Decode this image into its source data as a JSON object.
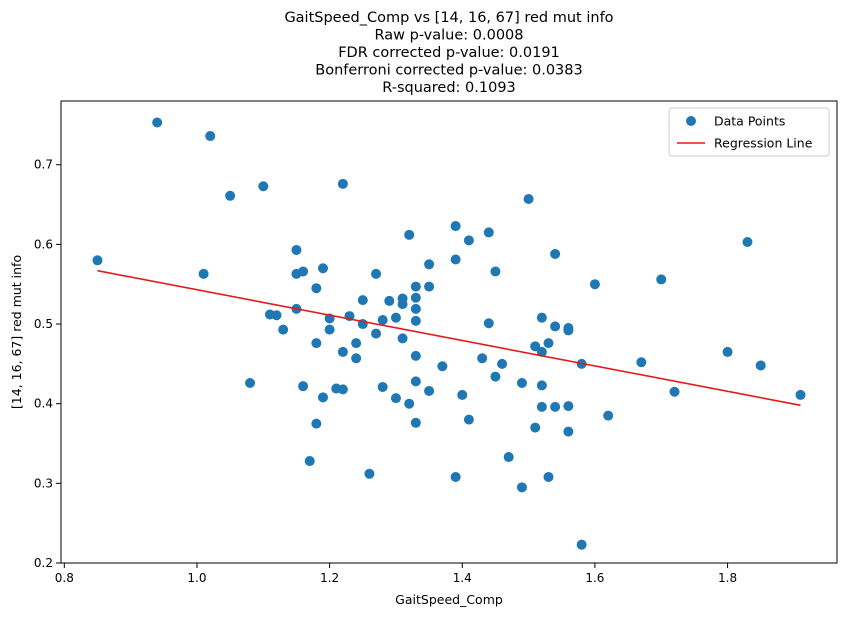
{
  "chart_data": {
    "type": "scatter",
    "title_lines": [
      "GaitSpeed_Comp vs [14, 16, 67] red mut info",
      "Raw p-value: 0.0008",
      "FDR corrected p-value: 0.0191",
      "Bonferroni corrected p-value: 0.0383",
      "R-squared: 0.1093"
    ],
    "xlabel": "GaitSpeed_Comp",
    "ylabel": "[14, 16, 67] red mut info",
    "xlim": [
      0.795,
      1.965
    ],
    "ylim": [
      0.2,
      0.78
    ],
    "x_ticks": [
      0.8,
      1.0,
      1.2,
      1.4,
      1.6,
      1.8
    ],
    "x_tick_labels": [
      "0.8",
      "1.0",
      "1.2",
      "1.4",
      "1.6",
      "1.8"
    ],
    "y_ticks": [
      0.2,
      0.3,
      0.4,
      0.5,
      0.6,
      0.7
    ],
    "y_tick_labels": [
      "0.2",
      "0.3",
      "0.4",
      "0.5",
      "0.6",
      "0.7"
    ],
    "grid": false,
    "legend_position": "top-right",
    "point_color": "#1f77b4",
    "line_color": "#e31a1c",
    "series": [
      {
        "name": "Data Points",
        "kind": "scatter",
        "points": [
          [
            0.85,
            0.58
          ],
          [
            0.94,
            0.753
          ],
          [
            1.01,
            0.563
          ],
          [
            1.02,
            0.736
          ],
          [
            1.05,
            0.661
          ],
          [
            1.08,
            0.426
          ],
          [
            1.1,
            0.673
          ],
          [
            1.11,
            0.512
          ],
          [
            1.12,
            0.511
          ],
          [
            1.13,
            0.493
          ],
          [
            1.15,
            0.593
          ],
          [
            1.15,
            0.563
          ],
          [
            1.15,
            0.519
          ],
          [
            1.16,
            0.566
          ],
          [
            1.16,
            0.422
          ],
          [
            1.17,
            0.328
          ],
          [
            1.18,
            0.545
          ],
          [
            1.18,
            0.476
          ],
          [
            1.18,
            0.375
          ],
          [
            1.19,
            0.57
          ],
          [
            1.19,
            0.408
          ],
          [
            1.2,
            0.507
          ],
          [
            1.2,
            0.493
          ],
          [
            1.21,
            0.419
          ],
          [
            1.22,
            0.676
          ],
          [
            1.22,
            0.465
          ],
          [
            1.22,
            0.418
          ],
          [
            1.23,
            0.51
          ],
          [
            1.24,
            0.476
          ],
          [
            1.24,
            0.457
          ],
          [
            1.25,
            0.53
          ],
          [
            1.25,
            0.5
          ],
          [
            1.26,
            0.312
          ],
          [
            1.27,
            0.563
          ],
          [
            1.27,
            0.488
          ],
          [
            1.28,
            0.505
          ],
          [
            1.28,
            0.421
          ],
          [
            1.29,
            0.529
          ],
          [
            1.3,
            0.508
          ],
          [
            1.3,
            0.407
          ],
          [
            1.31,
            0.532
          ],
          [
            1.31,
            0.525
          ],
          [
            1.31,
            0.482
          ],
          [
            1.32,
            0.612
          ],
          [
            1.32,
            0.4
          ],
          [
            1.33,
            0.547
          ],
          [
            1.33,
            0.533
          ],
          [
            1.33,
            0.519
          ],
          [
            1.33,
            0.504
          ],
          [
            1.33,
            0.46
          ],
          [
            1.33,
            0.428
          ],
          [
            1.33,
            0.376
          ],
          [
            1.35,
            0.575
          ],
          [
            1.35,
            0.547
          ],
          [
            1.35,
            0.416
          ],
          [
            1.37,
            0.447
          ],
          [
            1.39,
            0.623
          ],
          [
            1.39,
            0.581
          ],
          [
            1.39,
            0.308
          ],
          [
            1.4,
            0.411
          ],
          [
            1.41,
            0.605
          ],
          [
            1.41,
            0.38
          ],
          [
            1.43,
            0.457
          ],
          [
            1.44,
            0.615
          ],
          [
            1.44,
            0.501
          ],
          [
            1.45,
            0.566
          ],
          [
            1.45,
            0.434
          ],
          [
            1.46,
            0.45
          ],
          [
            1.47,
            0.333
          ],
          [
            1.49,
            0.426
          ],
          [
            1.49,
            0.295
          ],
          [
            1.5,
            0.657
          ],
          [
            1.51,
            0.472
          ],
          [
            1.51,
            0.37
          ],
          [
            1.52,
            0.508
          ],
          [
            1.52,
            0.465
          ],
          [
            1.52,
            0.423
          ],
          [
            1.52,
            0.396
          ],
          [
            1.53,
            0.476
          ],
          [
            1.53,
            0.308
          ],
          [
            1.54,
            0.588
          ],
          [
            1.54,
            0.497
          ],
          [
            1.54,
            0.396
          ],
          [
            1.56,
            0.495
          ],
          [
            1.56,
            0.492
          ],
          [
            1.56,
            0.397
          ],
          [
            1.56,
            0.365
          ],
          [
            1.58,
            0.45
          ],
          [
            1.58,
            0.223
          ],
          [
            1.6,
            0.55
          ],
          [
            1.62,
            0.385
          ],
          [
            1.67,
            0.452
          ],
          [
            1.7,
            0.556
          ],
          [
            1.72,
            0.415
          ],
          [
            1.8,
            0.465
          ],
          [
            1.83,
            0.603
          ],
          [
            1.85,
            0.448
          ],
          [
            1.91,
            0.411
          ]
        ]
      },
      {
        "name": "Regression Line",
        "kind": "line",
        "points": [
          [
            0.85,
            0.567
          ],
          [
            1.91,
            0.398
          ]
        ]
      }
    ]
  }
}
